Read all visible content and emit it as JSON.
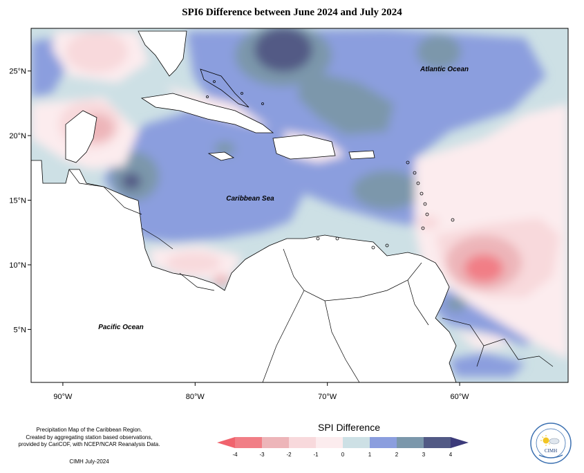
{
  "title": "SPI6 Difference between June 2024 and July 2024",
  "map": {
    "lon_range": [
      -92.4,
      -51.8
    ],
    "lat_range": [
      0.9,
      28.3
    ],
    "lon_ticks": [
      {
        "value": -90,
        "label": "90°W"
      },
      {
        "value": -80,
        "label": "80°W"
      },
      {
        "value": -70,
        "label": "70°W"
      },
      {
        "value": -60,
        "label": "60°W"
      }
    ],
    "lat_ticks": [
      {
        "value": 25,
        "label": "25°N"
      },
      {
        "value": 20,
        "label": "20°N"
      },
      {
        "value": 15,
        "label": "15°N"
      },
      {
        "value": 10,
        "label": "10°N"
      },
      {
        "value": 5,
        "label": "5°N"
      }
    ],
    "region_labels": {
      "atlantic": "Atlantic Ocean",
      "caribbean": "Caribbean Sea",
      "pacific": "Pacific Ocean"
    }
  },
  "legend": {
    "title": "SPI Difference",
    "ticks": [
      "-4",
      "-3",
      "-2",
      "-1",
      "0",
      "1",
      "2",
      "3",
      "4"
    ],
    "colors": [
      "#f17e86",
      "#edb5b9",
      "#f8d9dc",
      "#fcecee",
      "#cde0e5",
      "#8b9ede",
      "#7b97ab",
      "#525a85"
    ],
    "arrow_low_color": "#f0636d",
    "arrow_high_color": "#3c3b7a"
  },
  "footnote": {
    "line1": "Precipitation Map of the Caribbean Region.",
    "line2": "Created by aggregating station based observations,",
    "line3": "provided by CariCOF, with NCEP/NCAR Reanalysis Data.",
    "credit": "CIMH July-2024"
  },
  "logo": {
    "text": "CIMH"
  }
}
